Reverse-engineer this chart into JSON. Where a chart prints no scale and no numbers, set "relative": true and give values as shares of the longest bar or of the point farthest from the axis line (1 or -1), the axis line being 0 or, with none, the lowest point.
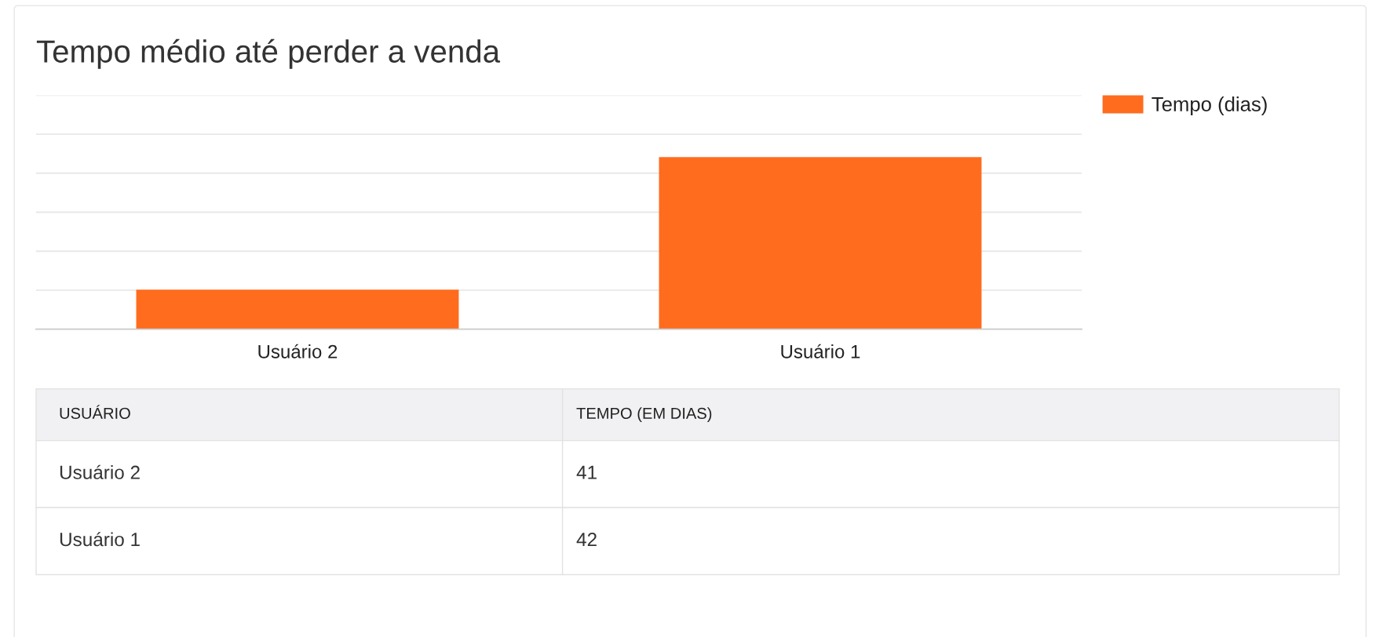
{
  "chart_data": [
    {
      "type": "bar",
      "title": "Tempo médio até perder a venda",
      "categories": [
        "Usuário 2",
        "Usuário 1"
      ],
      "series": [
        {
          "name": "Tempo (dias)",
          "color": "#ff6c1e",
          "values": [
            0.23,
            1
          ]
        }
      ],
      "relative": true,
      "ylim": [
        0,
        1.36
      ],
      "grid": "y",
      "legend": "top right"
    },
    {
      "type": "other",
      "xlabel": "USUÁRIO",
      "ylabel": "TEMPO (EM DIAS)",
      "categories": [
        "Usuário 2",
        "Usuário 1"
      ],
      "values": [
        41,
        42
      ],
      "data_labels": true
    }
  ]
}
